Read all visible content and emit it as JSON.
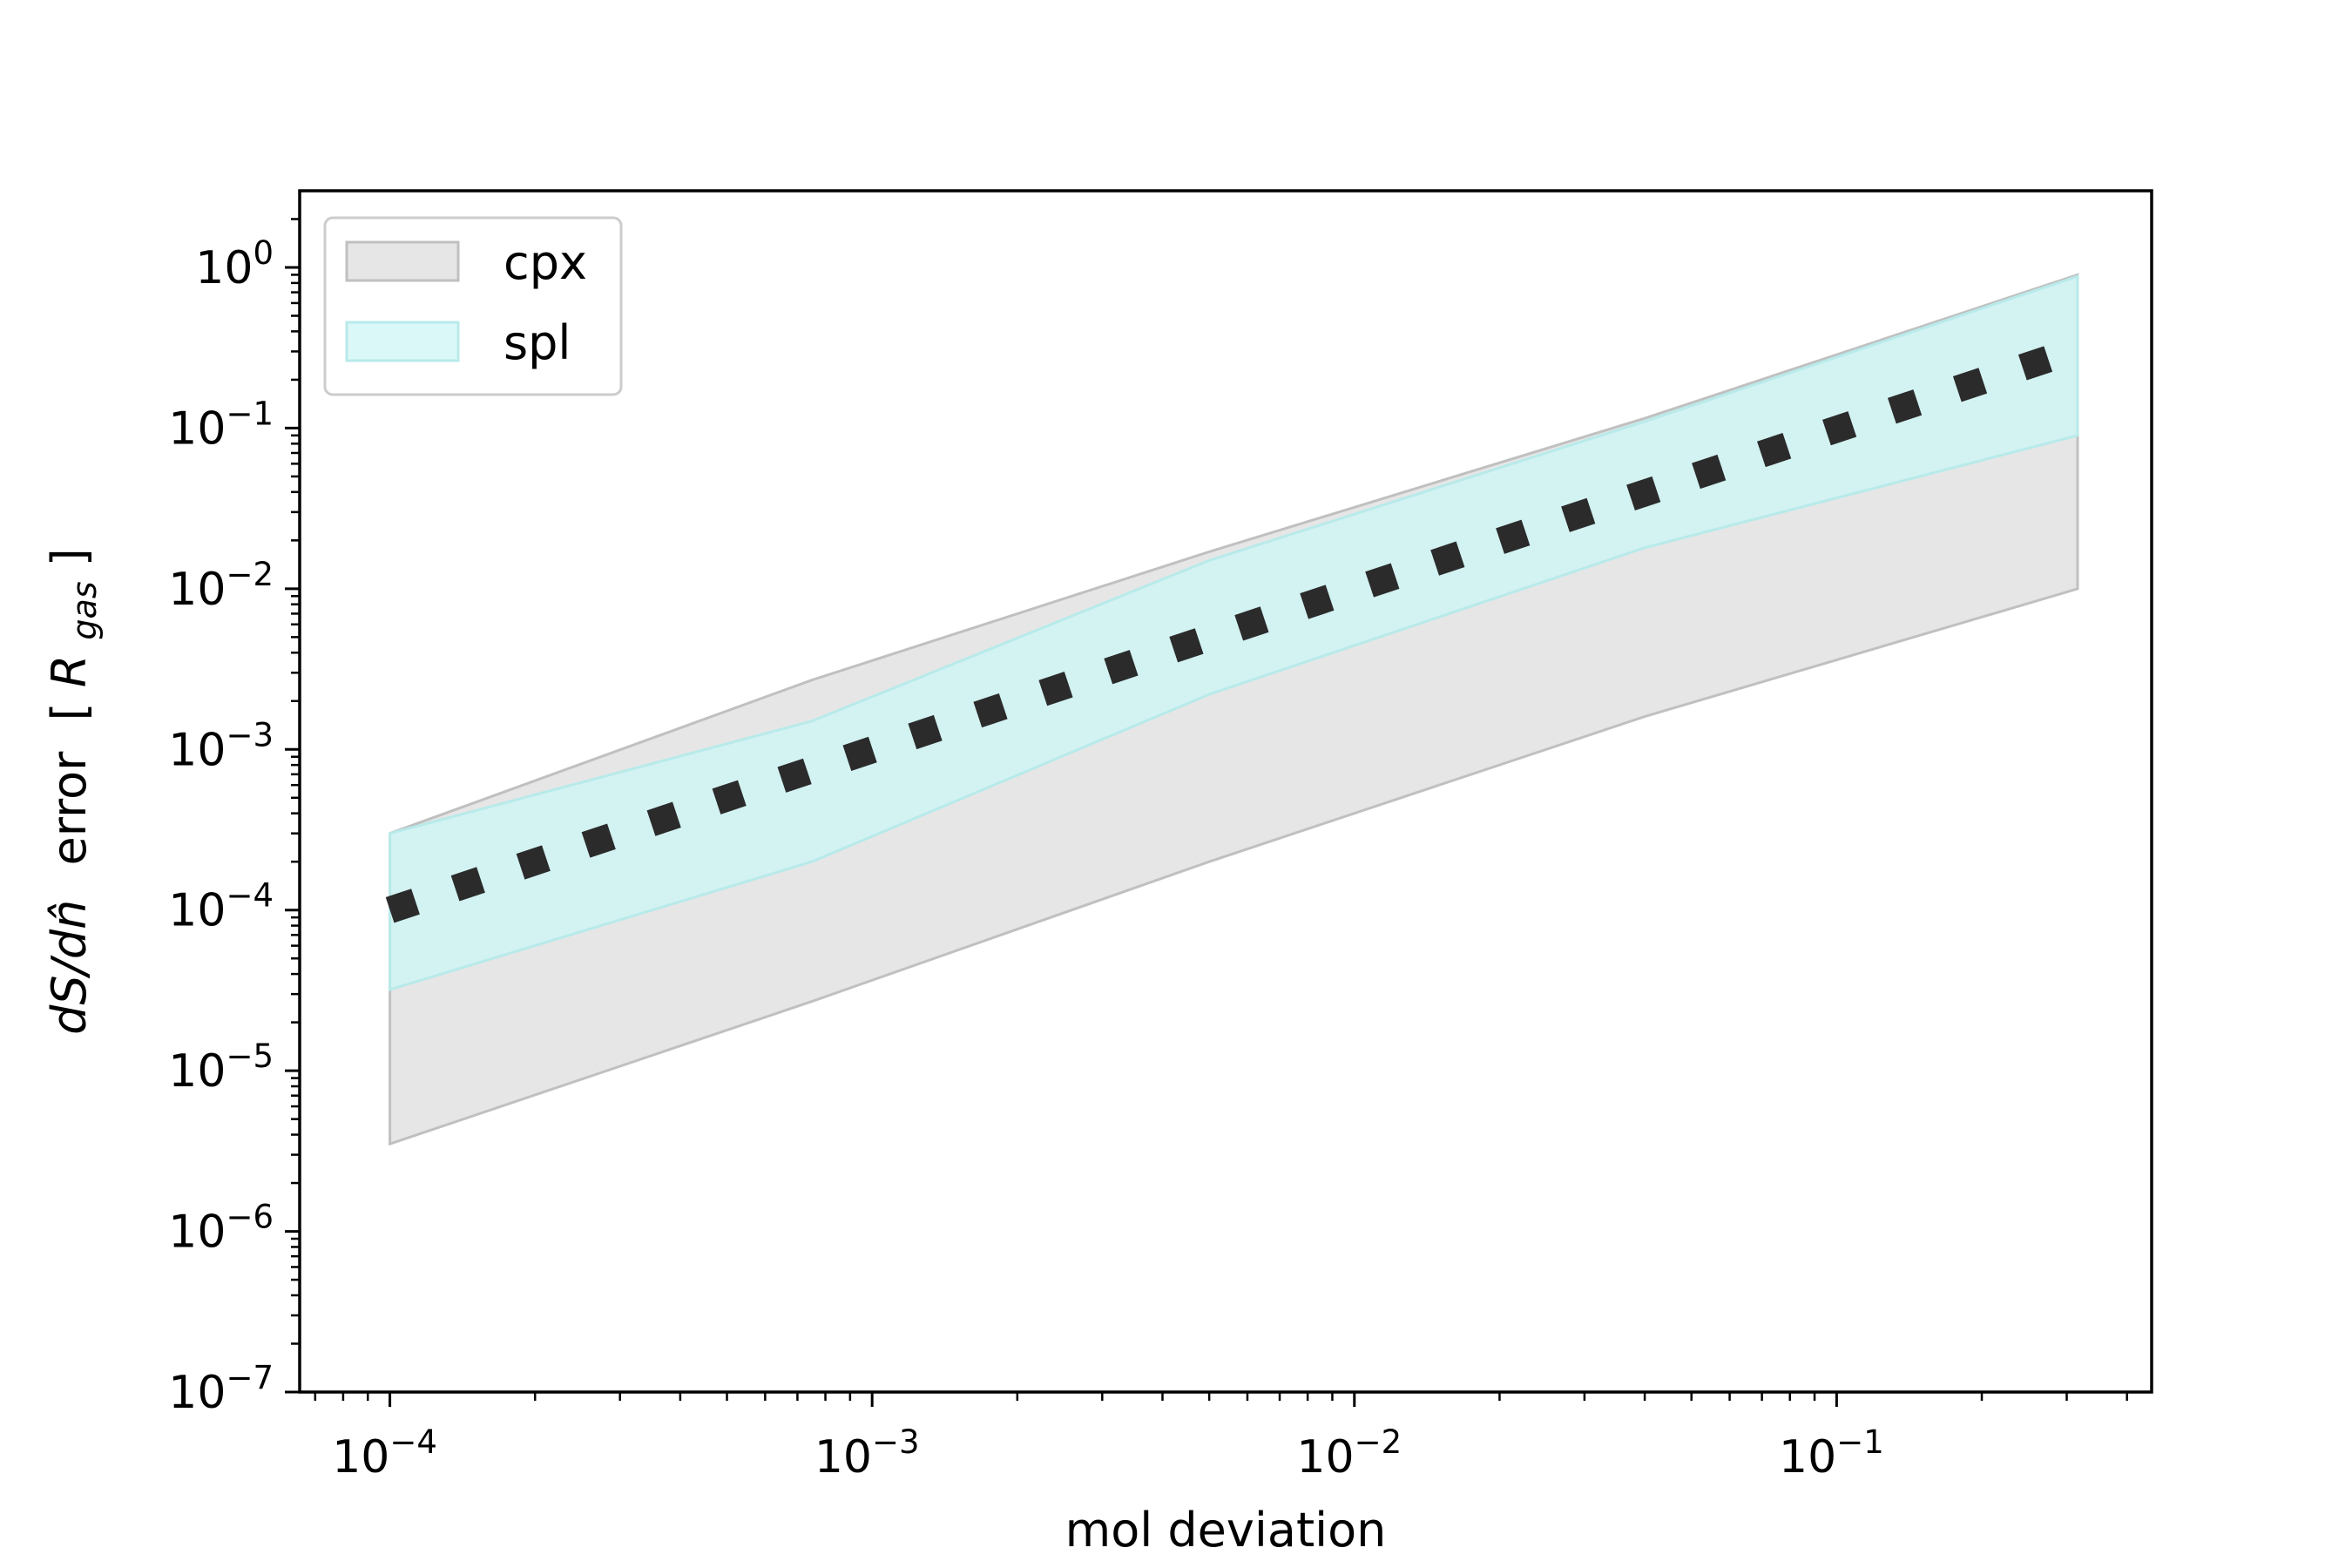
{
  "chart_data": {
    "type": "area",
    "title": "",
    "xlabel": "mol deviation",
    "ylabel": {
      "main": "dS/dn̂",
      "error_word": "error",
      "open_bracket": "[",
      "unit_symbol": "R",
      "unit_subscript": "gas",
      "close_bracket": "]"
    },
    "x_scale": "log",
    "y_scale": "log",
    "xlim": [
      6.5e-05,
      0.45
    ],
    "ylim": [
      1e-07,
      3
    ],
    "x_ticks": [
      {
        "value": 0.0001,
        "base": "10",
        "exp": "−4"
      },
      {
        "value": 0.001,
        "base": "10",
        "exp": "−3"
      },
      {
        "value": 0.01,
        "base": "10",
        "exp": "−2"
      },
      {
        "value": 0.1,
        "base": "10",
        "exp": "−1"
      }
    ],
    "y_ticks": [
      {
        "value": 1e-07,
        "base": "10",
        "exp": "−7"
      },
      {
        "value": 1e-06,
        "base": "10",
        "exp": "−6"
      },
      {
        "value": 1e-05,
        "base": "10",
        "exp": "−5"
      },
      {
        "value": 0.0001,
        "base": "10",
        "exp": "−4"
      },
      {
        "value": 0.001,
        "base": "10",
        "exp": "−3"
      },
      {
        "value": 0.01,
        "base": "10",
        "exp": "−2"
      },
      {
        "value": 0.1,
        "base": "10",
        "exp": "−1"
      },
      {
        "value": 1,
        "base": "10",
        "exp": "0"
      }
    ],
    "grid": false,
    "legend_position": "top-left",
    "series": [
      {
        "name": "cpx",
        "kind": "band",
        "color": "#d9d9d9",
        "edge_color": "#c0c0c0",
        "x": [
          0.0001,
          0.00075,
          0.005,
          0.04,
          0.316
        ],
        "upper": [
          0.0003,
          0.0027,
          0.017,
          0.115,
          0.9
        ],
        "lower": [
          3.5e-06,
          2.7e-05,
          0.0002,
          0.0016,
          0.01
        ]
      },
      {
        "name": "spl",
        "kind": "band",
        "color": "#ccf5f5",
        "edge_color": "#b8eaea",
        "x": [
          0.0001,
          0.00075,
          0.005,
          0.04,
          0.316
        ],
        "upper": [
          0.0003,
          0.0015,
          0.015,
          0.11,
          0.88
        ],
        "lower": [
          3.2e-05,
          0.0002,
          0.0022,
          0.018,
          0.09
        ]
      },
      {
        "name": "",
        "kind": "line",
        "style": "dotted",
        "color": "#2b2b2b",
        "x": [
          0.0001,
          0.316
        ],
        "y": [
          0.0001,
          0.31
        ]
      }
    ]
  }
}
